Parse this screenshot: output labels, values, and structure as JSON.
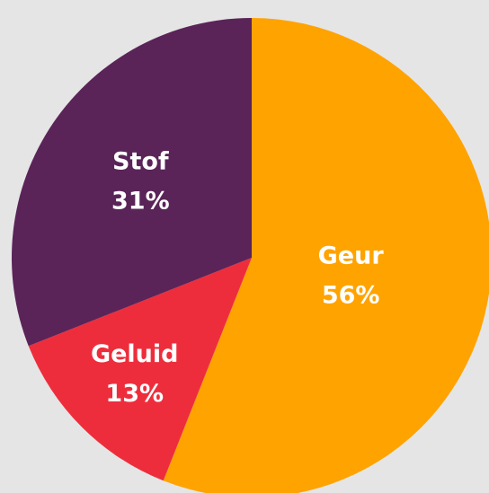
{
  "chart_data": {
    "type": "pie",
    "categories": [
      "Geur",
      "Geluid",
      "Stof"
    ],
    "values": [
      56,
      13,
      31
    ],
    "value_labels": [
      "56%",
      "13%",
      "31%"
    ],
    "colors": [
      "#ffa300",
      "#ee2d3c",
      "#5a2458"
    ]
  }
}
